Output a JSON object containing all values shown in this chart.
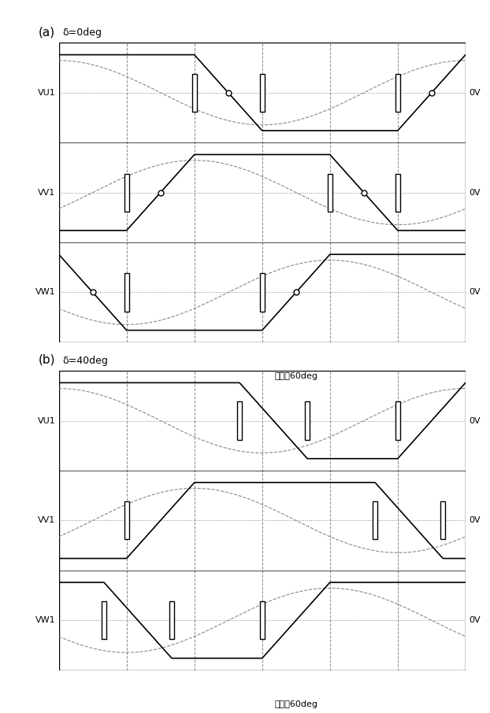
{
  "fig_width": 6.22,
  "fig_height": 9.06,
  "bg_color": "#ffffff",
  "line_color": "#000000",
  "dashed_color": "#888888",
  "panel_a_title": "δ=0deg",
  "panel_b_title": "δ=40deg",
  "panel_a_label": "(a)",
  "panel_b_label": "(b)",
  "row_labels": [
    "VU1",
    "VV1",
    "VW1"
  ],
  "right_labels": [
    "0V",
    "0V",
    "0V"
  ],
  "annotation": "電気觓60deg",
  "num_periods": 6,
  "delta_a": 0,
  "delta_b": 40
}
